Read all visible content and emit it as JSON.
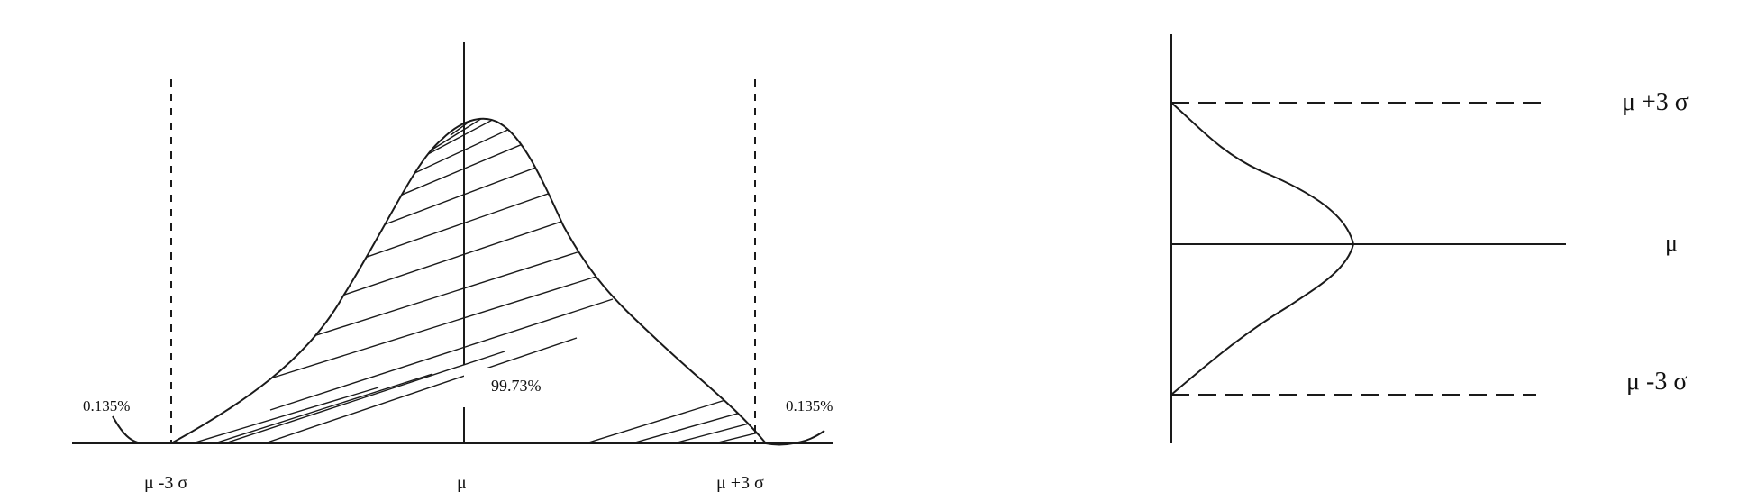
{
  "left_figure": {
    "inner_label": "99.73%",
    "left_tail": "0.135%",
    "right_tail": "0.135%",
    "axis_labels": [
      "μ -3 σ",
      "μ",
      "μ +3 σ"
    ]
  },
  "right_figure": {
    "upper_label": "μ +3 σ",
    "center_label": "μ",
    "lower_label": "μ -3 σ"
  }
}
